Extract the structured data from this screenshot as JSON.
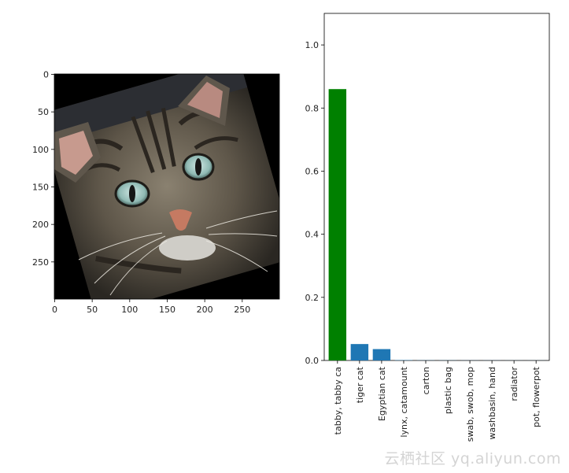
{
  "image_panel": {
    "subject_icon": "tabby-cat-photo-icon",
    "x_ticks": [
      0,
      50,
      100,
      150,
      200,
      250
    ],
    "y_ticks": [
      0,
      50,
      100,
      150,
      200,
      250
    ],
    "xlim": [
      0,
      299
    ],
    "ylim": [
      299,
      0
    ]
  },
  "chart_data": {
    "type": "bar",
    "title": "",
    "xlabel": "",
    "ylabel": "",
    "categories": [
      "tabby, tabby ca",
      "tiger cat",
      "Egyptian cat",
      "lynx, catamount",
      "carton",
      "plastic bag",
      "swab, swob, mop",
      "washbasin, hand",
      "radiator",
      "pot, flowerpot"
    ],
    "values": [
      0.86,
      0.052,
      0.036,
      0.001,
      0.0005,
      0.0004,
      0.0003,
      0.0003,
      0.0002,
      0.0002
    ],
    "colors": [
      "#008000",
      "#1f77b4",
      "#1f77b4",
      "#1f77b4",
      "#1f77b4",
      "#1f77b4",
      "#1f77b4",
      "#1f77b4",
      "#1f77b4",
      "#1f77b4"
    ],
    "ylim": [
      0,
      1.1
    ],
    "yticks": [
      0.0,
      0.2,
      0.4,
      0.6,
      0.8,
      1.0
    ],
    "grid": false,
    "legend": "none"
  },
  "watermark": "云栖社区 yq.aliyun.com"
}
